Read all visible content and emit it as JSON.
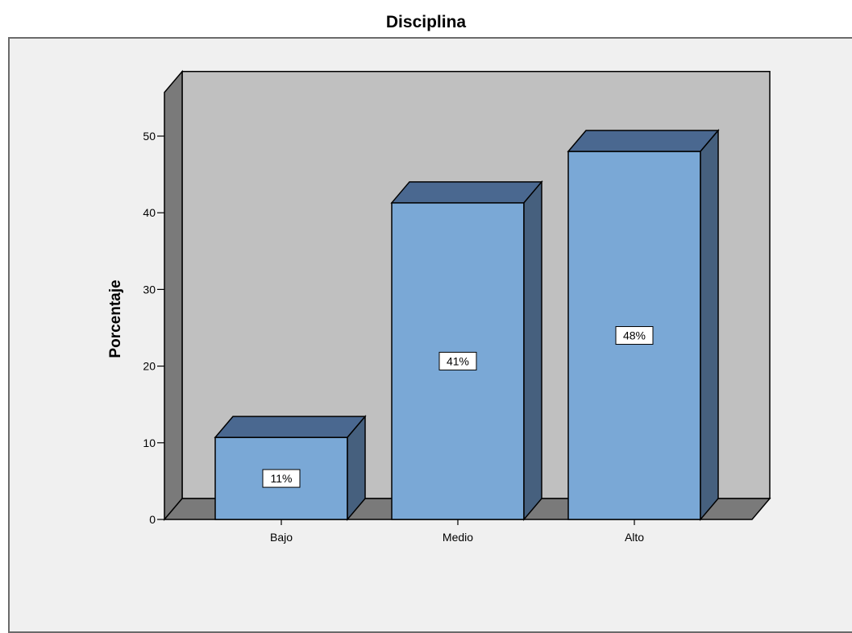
{
  "chart_data": {
    "type": "bar",
    "title": "Disciplina",
    "xlabel": "",
    "ylabel": "Porcentaje",
    "categories": [
      "Bajo",
      "Medio",
      "Alto"
    ],
    "values": [
      10.7,
      41.3,
      48.0
    ],
    "data_labels": [
      "11%",
      "41%",
      "48%"
    ],
    "ylim": [
      0,
      50
    ],
    "y_ticks": [
      0,
      10,
      20,
      30,
      40,
      50
    ],
    "style": "3d",
    "grid": false,
    "legend": "none",
    "colors": {
      "bar_front": "#7aa8d6",
      "bar_top": "#4a6890",
      "bar_side": "#46607e",
      "back_wall": "#c0c0c0",
      "side_wall": "#7a7a7a",
      "floor": "#7a7a7a",
      "frame_bg": "#f0f0f0"
    }
  }
}
